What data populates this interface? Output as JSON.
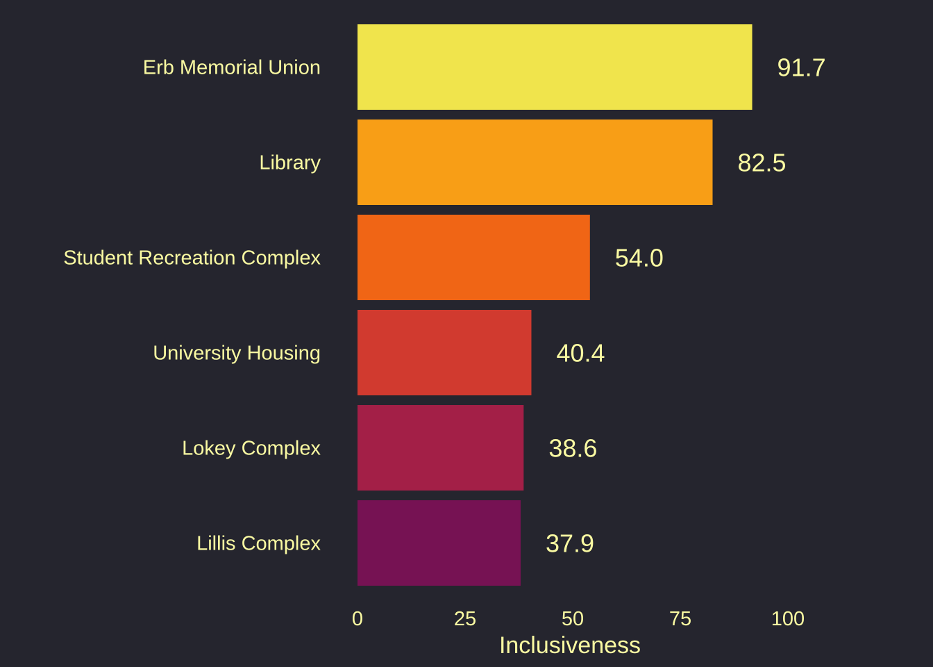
{
  "chart_data": {
    "type": "bar",
    "orientation": "horizontal",
    "title": "",
    "xlabel": "Inclusiveness",
    "ylabel": "",
    "xlim": [
      0,
      100
    ],
    "xticks": [
      0,
      25,
      50,
      75,
      100
    ],
    "grid": false,
    "legend": "none",
    "categories": [
      "Erb Memorial Union",
      "Library",
      "Student Recreation Complex",
      "University Housing",
      "Lokey Complex",
      "Lillis Complex"
    ],
    "values": [
      91.7,
      82.5,
      54.0,
      40.4,
      38.6,
      37.9
    ],
    "value_labels": [
      "91.7",
      "82.5",
      "54.0",
      "40.4",
      "38.6",
      "37.9"
    ],
    "bar_colors": [
      "#f0e44c",
      "#f89e16",
      "#f06515",
      "#d13a2f",
      "#a31f47",
      "#761253"
    ]
  },
  "colors": {
    "background": "#25252e",
    "text": "#fafaa2"
  }
}
